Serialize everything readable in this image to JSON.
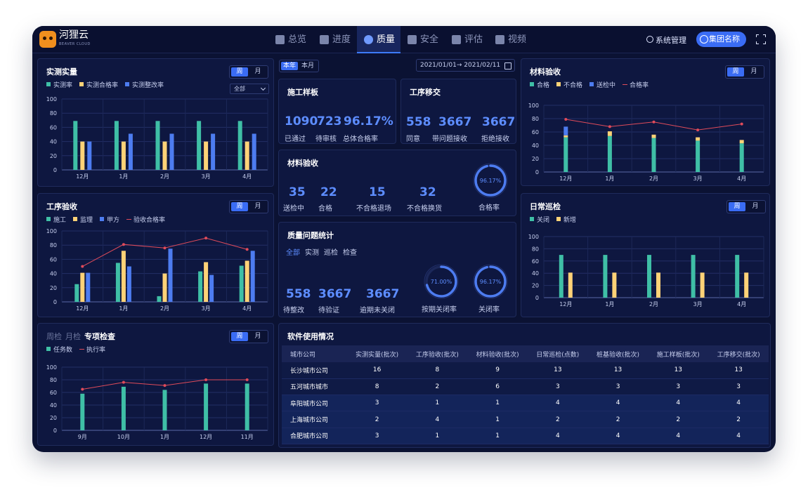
{
  "header": {
    "brand": "河狸云",
    "brand_sub": "BEAVER CLOUD",
    "nav": [
      {
        "label": "总览",
        "icon": "grid-icon"
      },
      {
        "label": "进度",
        "icon": "progress-icon"
      },
      {
        "label": "质量",
        "icon": "quality-gear-icon"
      },
      {
        "label": "安全",
        "icon": "helmet-icon"
      },
      {
        "label": "评估",
        "icon": "evaluate-icon"
      },
      {
        "label": "视频",
        "icon": "video-icon"
      }
    ],
    "active_nav": "质量",
    "system": "系统管理",
    "group": "集团名称"
  },
  "colors": {
    "green": "#3fbfa6",
    "yellow": "#ffd277",
    "blue": "#4d7cf0",
    "red": "#e04b5a",
    "accent": "#5d8dff"
  },
  "toggle": {
    "week": "周",
    "month": "月"
  },
  "measure": {
    "title": "实测实量",
    "select": "全部",
    "chart_data": {
      "type": "bar",
      "categories": [
        "12月",
        "1月",
        "2月",
        "3月",
        "4月"
      ],
      "ylim": [
        0,
        100
      ],
      "yticks": [
        "0",
        "20",
        "40",
        "60",
        "80",
        "100"
      ],
      "series": [
        {
          "name": "实测率",
          "color": "#3fbfa6",
          "values": [
            69,
            69,
            69,
            69,
            69
          ]
        },
        {
          "name": "实测合格率",
          "color": "#ffd277",
          "values": [
            40,
            40,
            40,
            40,
            40
          ]
        },
        {
          "name": "实测整改率",
          "color": "#4d7cf0",
          "values": [
            40,
            51,
            51,
            51,
            51
          ]
        }
      ]
    }
  },
  "process": {
    "title": "工序验收",
    "chart_data": {
      "type": "bar",
      "categories": [
        "12月",
        "1月",
        "2月",
        "3月",
        "4月"
      ],
      "ylim": [
        0,
        100
      ],
      "yticks": [
        "0",
        "20",
        "40",
        "60",
        "80",
        "100"
      ],
      "series": [
        {
          "name": "施工",
          "color": "#3fbfa6",
          "values": [
            25,
            55,
            8,
            43,
            51
          ]
        },
        {
          "name": "监理",
          "color": "#ffd277",
          "values": [
            41,
            72,
            40,
            56,
            58
          ]
        },
        {
          "name": "甲方",
          "color": "#4d7cf0",
          "values": [
            41,
            50,
            75,
            38,
            72
          ]
        },
        {
          "name": "验收合格率",
          "color": "#e04b5a",
          "type": "line",
          "values": [
            50,
            81,
            76,
            90,
            74
          ]
        }
      ]
    }
  },
  "special": {
    "tabs": [
      "周检",
      "月检",
      "专项检查"
    ],
    "chart_data": {
      "type": "bar",
      "categories": [
        "9月",
        "10月",
        "1月",
        "12月",
        "11月"
      ],
      "ylim": [
        0,
        100
      ],
      "yticks": [
        "0",
        "20",
        "40",
        "60",
        "80",
        "100"
      ],
      "series": [
        {
          "name": "任务数",
          "color": "#3fbfa6",
          "values": [
            58,
            69,
            64,
            74,
            74
          ]
        },
        {
          "name": "执行率",
          "color": "#e04b5a",
          "type": "line",
          "values": [
            65,
            76,
            71,
            80,
            80
          ]
        }
      ]
    }
  },
  "center": {
    "tab_year": "本年",
    "tab_month": "本月",
    "date_range": "2021/01/01→ 2021/02/11"
  },
  "sample": {
    "title": "施工样板",
    "stats": [
      {
        "value": "1090",
        "label": "已通过"
      },
      {
        "value": "723",
        "label": "待审核"
      },
      {
        "value": "96.17%",
        "label": "总体合格率"
      }
    ]
  },
  "handover": {
    "title": "工序移交",
    "stats": [
      {
        "value": "558",
        "label": "同意"
      },
      {
        "value": "3667",
        "label": "带问题接收"
      },
      {
        "value": "3667",
        "label": "拒绝接收"
      }
    ]
  },
  "material_mid": {
    "title": "材料验收",
    "stats": [
      {
        "value": "35",
        "label": "送检中"
      },
      {
        "value": "22",
        "label": "合格"
      },
      {
        "value": "15",
        "label": "不合格退场"
      },
      {
        "value": "32",
        "label": "不合格换货"
      }
    ],
    "ring": {
      "value": "96.17%",
      "percent": 96.17,
      "label": "合格率"
    }
  },
  "issues": {
    "title": "质量问题统计",
    "tabs": [
      "全部",
      "实测",
      "巡检",
      "检查"
    ],
    "stats": [
      {
        "value": "558",
        "label": "待整改"
      },
      {
        "value": "3667",
        "label": "待验证"
      },
      {
        "value": "3667",
        "label": "逾期未关闭"
      }
    ],
    "rings": [
      {
        "value": "71.00%",
        "percent": 71,
        "label": "按期关闭率"
      },
      {
        "value": "96.17%",
        "percent": 96.17,
        "label": "关闭率"
      }
    ]
  },
  "usage": {
    "title": "软件使用情况",
    "columns": [
      "城市公司",
      "实测实量(批次)",
      "工序验收(批次)",
      "材料验收(批次)",
      "日常巡检(点数)",
      "桩基验收(批次)",
      "施工样板(批次)",
      "工序移交(批次)"
    ],
    "rows": [
      [
        "长沙城市公司",
        "16",
        "8",
        "9",
        "13",
        "13",
        "13",
        "13"
      ],
      [
        "五河城市城市",
        "8",
        "2",
        "6",
        "3",
        "3",
        "3",
        "3"
      ],
      [
        "阜阳城市公司",
        "3",
        "1",
        "1",
        "4",
        "4",
        "4",
        "4"
      ],
      [
        "上海城市公司",
        "2",
        "4",
        "1",
        "2",
        "2",
        "2",
        "2"
      ],
      [
        "合肥城市公司",
        "3",
        "1",
        "1",
        "4",
        "4",
        "4",
        "4"
      ]
    ]
  },
  "material_right": {
    "title": "材料验收",
    "chart_data": {
      "type": "bar",
      "stacked": true,
      "categories": [
        "12月",
        "1月",
        "2月",
        "3月",
        "4月"
      ],
      "ylim": [
        0,
        100
      ],
      "yticks": [
        "0",
        "20",
        "40",
        "60",
        "80",
        "100"
      ],
      "series": [
        {
          "name": "合格",
          "color": "#3fbfa6",
          "values": [
            52,
            54,
            51,
            47,
            43
          ]
        },
        {
          "name": "不合格",
          "color": "#ffd277",
          "values": [
            3,
            7,
            5,
            5,
            5
          ]
        },
        {
          "name": "送检中",
          "color": "#4d7cf0",
          "values": [
            13,
            0,
            0,
            0,
            0
          ]
        },
        {
          "name": "合格率",
          "color": "#e04b5a",
          "type": "line",
          "values": [
            79,
            68,
            75,
            63,
            72
          ]
        }
      ]
    }
  },
  "patrol": {
    "title": "日常巡检",
    "chart_data": {
      "type": "bar",
      "categories": [
        "12月",
        "1月",
        "2月",
        "3月",
        "4月"
      ],
      "ylim": [
        0,
        100
      ],
      "yticks": [
        "0",
        "20",
        "40",
        "60",
        "80",
        "100"
      ],
      "series": [
        {
          "name": "关闭",
          "color": "#3fbfa6",
          "values": [
            70,
            70,
            70,
            70,
            70
          ]
        },
        {
          "name": "新增",
          "color": "#ffd277",
          "values": [
            41,
            41,
            41,
            41,
            41
          ]
        }
      ]
    }
  }
}
